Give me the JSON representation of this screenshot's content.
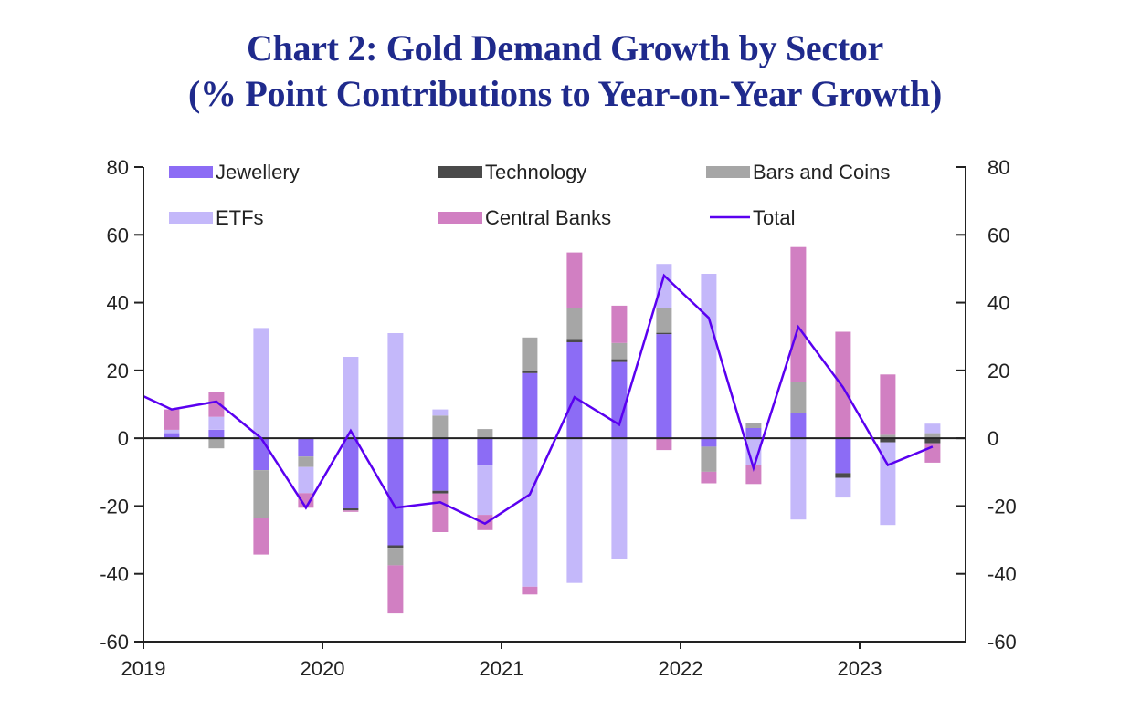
{
  "chart_data": {
    "type": "bar",
    "subtype": "stacked bar with line overlay",
    "title": "Chart 2: Gold Demand Growth by Sector",
    "subtitle": "(% Point Contributions to Year-on-Year Growth)",
    "xlabel": "",
    "ylabel": "",
    "ylim": [
      -60,
      80
    ],
    "y_ticks": [
      80,
      60,
      40,
      20,
      0,
      -20,
      -40,
      -60
    ],
    "y_tick_labels": [
      "80",
      "60",
      "40",
      "20",
      "0",
      "-20",
      "-40",
      "-60"
    ],
    "y2_ticks": [
      80,
      60,
      40,
      20,
      0,
      -20,
      -40,
      -60
    ],
    "y2_tick_labels": [
      "80",
      "60",
      "40",
      "20",
      "0",
      "-20",
      "-40",
      "-60"
    ],
    "x_tick_labels": [
      "2019",
      "2020",
      "2021",
      "2022",
      "2023"
    ],
    "grid": false,
    "legend_placement": "top",
    "categories": [
      "2019Q2",
      "2019Q3",
      "2019Q4",
      "2020Q1",
      "2020Q2",
      "2020Q3",
      "2020Q4",
      "2021Q1",
      "2021Q2",
      "2021Q3",
      "2021Q4",
      "2022Q1",
      "2022Q2",
      "2022Q3",
      "2022Q4",
      "2023Q1",
      "2023Q2",
      "2023Q3"
    ],
    "series": [
      {
        "name": "Jewellery",
        "kind": "bar",
        "color": "#8c6cf5",
        "values": [
          1.5,
          2.5,
          -9.4,
          -5.4,
          -20.7,
          -31.6,
          -15.5,
          -8.1,
          19.2,
          28.3,
          22.5,
          30.7,
          -2.5,
          3.0,
          7.4,
          -10.3,
          0.0,
          0.0
        ]
      },
      {
        "name": "Technology",
        "kind": "bar",
        "color": "#4a4a4a",
        "values": [
          0.0,
          0.0,
          0.0,
          0.0,
          -0.6,
          -0.7,
          -0.8,
          0.0,
          0.7,
          1.0,
          0.8,
          0.4,
          0.0,
          0.0,
          0.0,
          -1.4,
          -1.2,
          -1.5
        ]
      },
      {
        "name": "Bars and Coins",
        "kind": "bar",
        "color": "#a6a6a6",
        "values": [
          0.0,
          -3.0,
          -14.0,
          -3.1,
          0.0,
          -5.2,
          6.7,
          2.7,
          9.8,
          9.2,
          4.8,
          7.3,
          -7.4,
          1.5,
          9.2,
          0.0,
          1.0,
          1.5
        ]
      },
      {
        "name": "ETFs",
        "kind": "bar",
        "color": "#c4b8fa",
        "values": [
          1.0,
          3.8,
          32.5,
          -7.7,
          24.0,
          31.0,
          1.8,
          -14.5,
          -43.8,
          -42.7,
          -35.5,
          13.0,
          48.5,
          -8.0,
          -24.0,
          -5.8,
          -24.4,
          2.8
        ]
      },
      {
        "name": "Central Banks",
        "kind": "bar",
        "color": "#d17fc2",
        "values": [
          6.0,
          7.2,
          -10.9,
          -4.3,
          -0.4,
          -14.2,
          -11.4,
          -4.5,
          -2.3,
          16.3,
          11.0,
          -3.5,
          -3.4,
          -5.5,
          39.8,
          31.4,
          17.8,
          -5.7
        ]
      },
      {
        "name": "Total",
        "kind": "line",
        "color": "#5a00f0",
        "x_start_value": 12.4,
        "values": [
          8.5,
          10.8,
          0.0,
          -20.5,
          2.2,
          -20.5,
          -18.9,
          -25.2,
          -16.6,
          12.1,
          4.0,
          48.0,
          35.5,
          -8.8,
          32.8,
          15.0,
          -7.9,
          -2.5
        ]
      }
    ],
    "legend": [
      {
        "label": "Jewellery",
        "swatch": "bar",
        "color": "#8c6cf5"
      },
      {
        "label": "Technology",
        "swatch": "bar",
        "color": "#4a4a4a"
      },
      {
        "label": "Bars and Coins",
        "swatch": "bar",
        "color": "#a6a6a6"
      },
      {
        "label": "ETFs",
        "swatch": "bar",
        "color": "#c4b8fa"
      },
      {
        "label": "Central Banks",
        "swatch": "bar",
        "color": "#d17fc2"
      },
      {
        "label": "Total",
        "swatch": "line",
        "color": "#5a00f0"
      }
    ]
  }
}
